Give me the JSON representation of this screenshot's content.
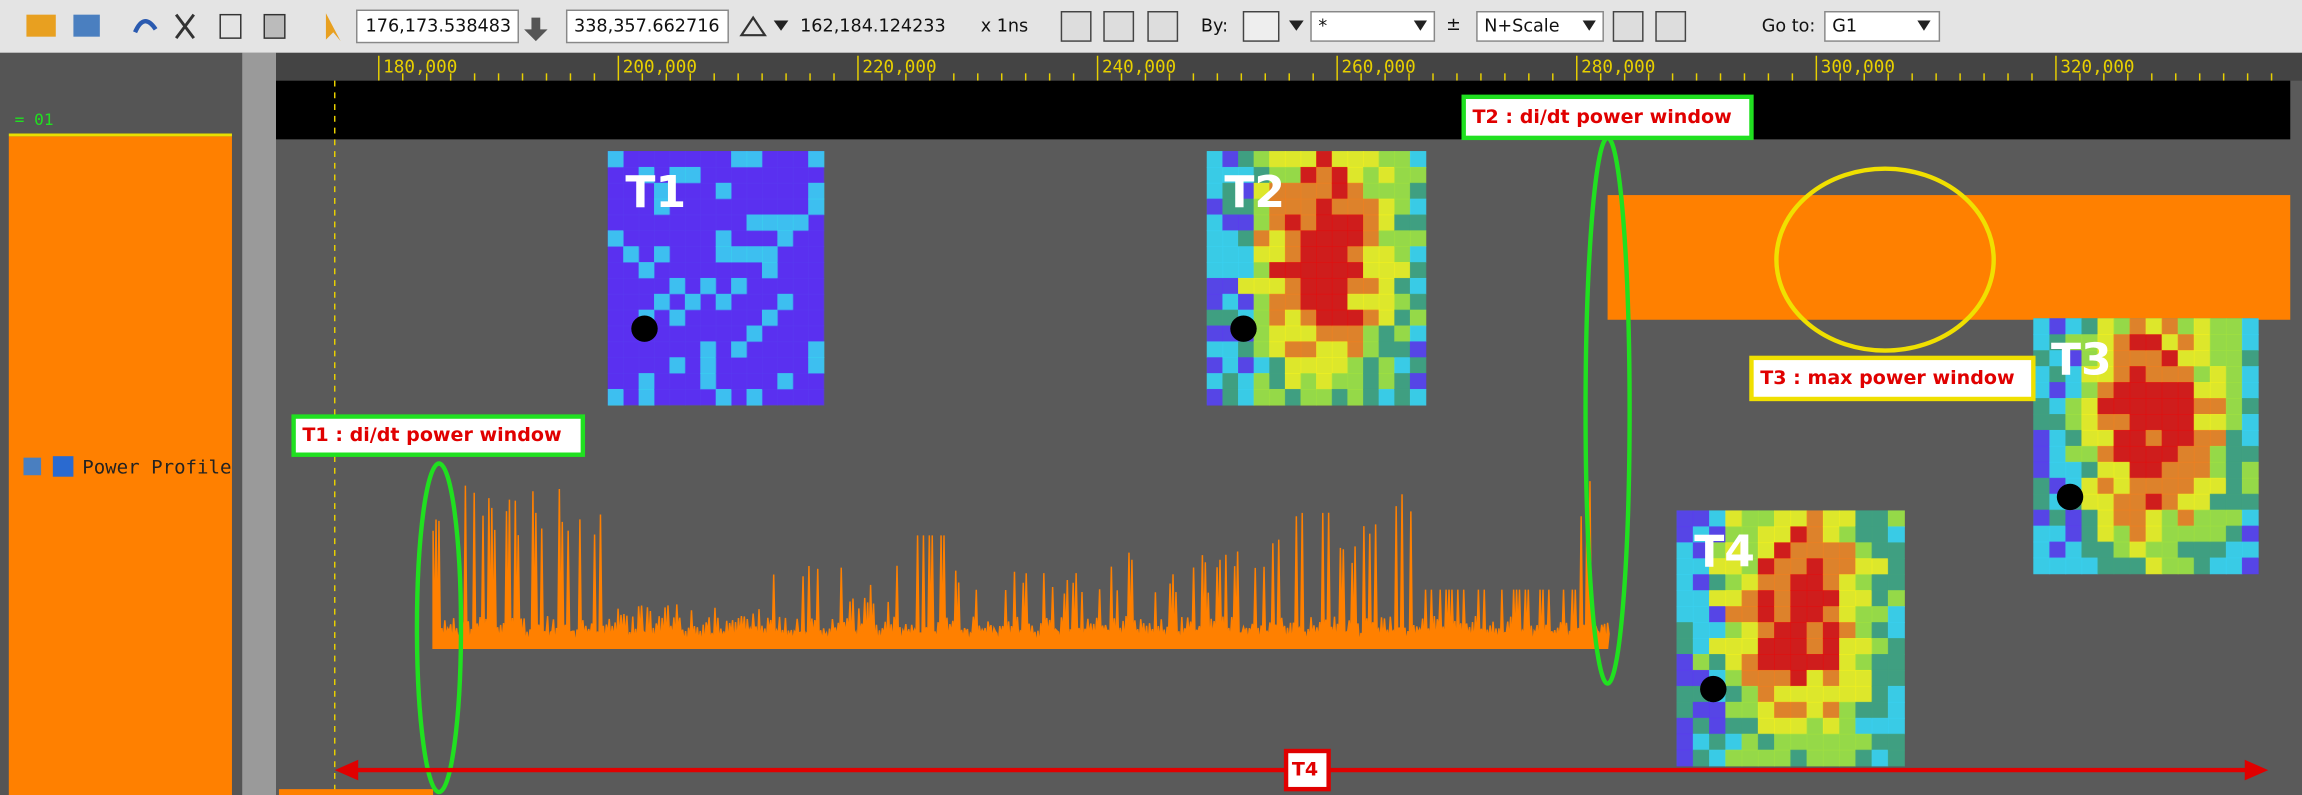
{
  "toolbar": {
    "cursor_time": "176,173.538483",
    "marker_time": "338,357.662716",
    "delta_time": "162,184.124233",
    "resolution": "x 1ns",
    "by_label": "By:",
    "filter": "*",
    "scale": "N+Scale",
    "goto_label": "Go to:",
    "goto": "G1"
  },
  "ruler": {
    "ticks": [
      "180,000",
      "200,000",
      "220,000",
      "240,000",
      "260,000",
      "280,000",
      "300,000",
      "320,000"
    ]
  },
  "signals": {
    "group": "= 01",
    "name": "Power Profile"
  },
  "annotations": {
    "t1": "T1 :  di/dt power window",
    "t2": "T2 :  di/dt power window",
    "t3": "T3 :  max power window",
    "t4": "T4"
  },
  "maps": [
    "T1",
    "T2",
    "T3",
    "T4"
  ]
}
